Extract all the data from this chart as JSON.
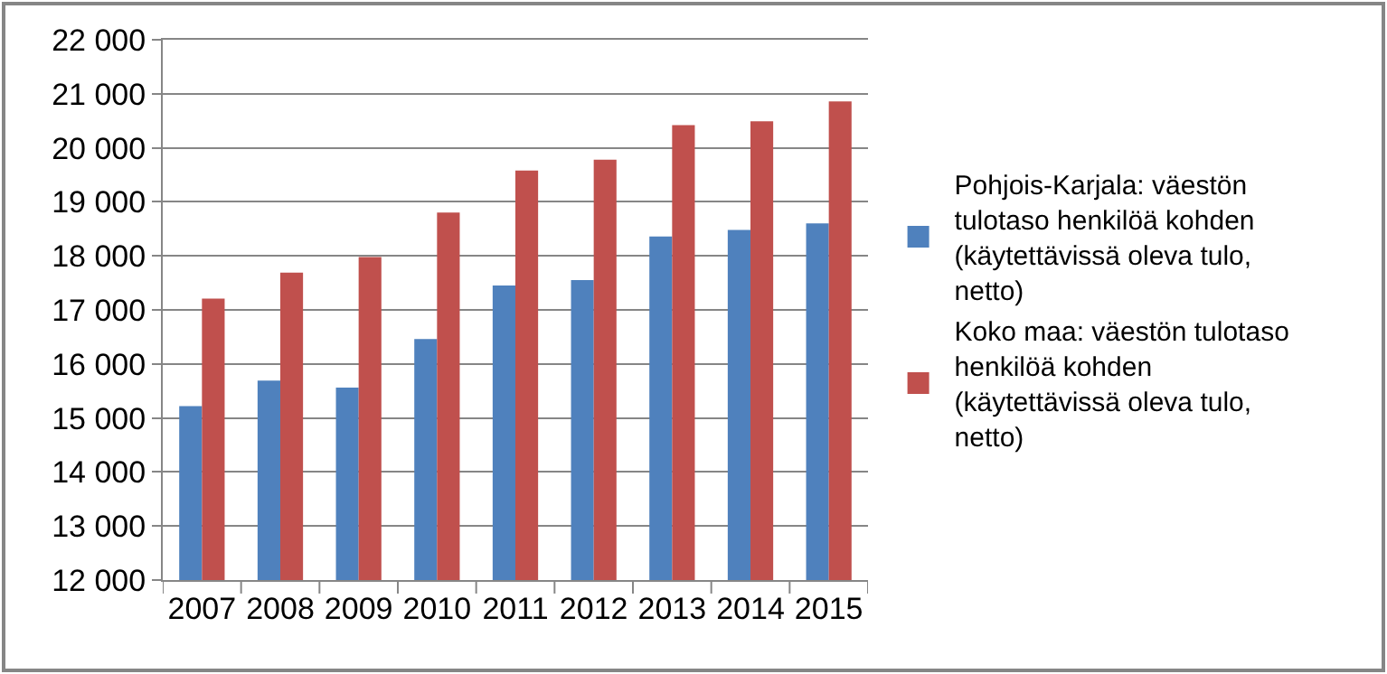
{
  "chart_data": {
    "type": "bar",
    "categories": [
      "2007",
      "2008",
      "2009",
      "2010",
      "2011",
      "2012",
      "2013",
      "2014",
      "2015"
    ],
    "series": [
      {
        "name": "Pohjois-Karjala: väestön tulotaso henkilöä kohden (käytettävissä oleva tulo, netto)",
        "color": "#4f81bd",
        "values": [
          15220,
          15690,
          15560,
          16460,
          17450,
          17550,
          18360,
          18480,
          18600
        ]
      },
      {
        "name": "Koko maa: väestön tulotaso henkilöä kohden (käytettävissä oleva tulo, netto)",
        "color": "#c0504d",
        "values": [
          17210,
          17690,
          17980,
          18800,
          19580,
          19780,
          20420,
          20490,
          20860
        ]
      }
    ],
    "ylim": [
      12000,
      22000
    ],
    "yticks": [
      {
        "value": 12000,
        "label": "12 000"
      },
      {
        "value": 13000,
        "label": "13 000"
      },
      {
        "value": 14000,
        "label": "14 000"
      },
      {
        "value": 15000,
        "label": "15 000"
      },
      {
        "value": 16000,
        "label": "16 000"
      },
      {
        "value": 17000,
        "label": "17 000"
      },
      {
        "value": 18000,
        "label": "18 000"
      },
      {
        "value": 19000,
        "label": "19 000"
      },
      {
        "value": 20000,
        "label": "20 000"
      },
      {
        "value": 21000,
        "label": "21 000"
      },
      {
        "value": 22000,
        "label": "22 000"
      }
    ],
    "grid": "y",
    "legend": "right"
  }
}
